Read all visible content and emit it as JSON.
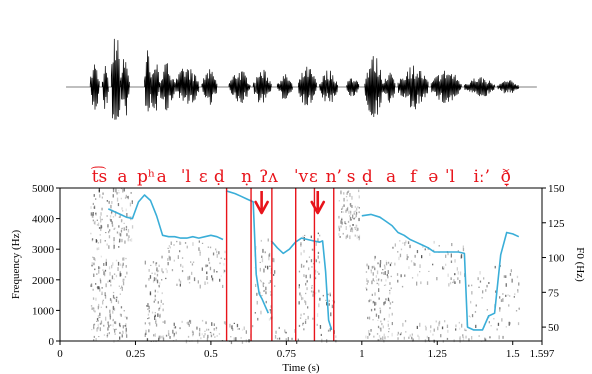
{
  "chart_data": [
    {
      "type": "waveform",
      "title": "",
      "xlim": [
        0,
        1.597
      ],
      "bursts": [
        {
          "t0": 0.1,
          "t1": 0.13,
          "amp": 0.45
        },
        {
          "t0": 0.14,
          "t1": 0.16,
          "amp": 0.4
        },
        {
          "t0": 0.17,
          "t1": 0.2,
          "amp": 1.0
        },
        {
          "t0": 0.2,
          "t1": 0.23,
          "amp": 0.55
        },
        {
          "t0": 0.28,
          "t1": 0.3,
          "amp": 0.65
        },
        {
          "t0": 0.3,
          "t1": 0.33,
          "amp": 0.5
        },
        {
          "t0": 0.33,
          "t1": 0.38,
          "amp": 0.42
        },
        {
          "t0": 0.38,
          "t1": 0.46,
          "amp": 0.35
        },
        {
          "t0": 0.47,
          "t1": 0.52,
          "amp": 0.3
        },
        {
          "t0": 0.56,
          "t1": 0.63,
          "amp": 0.3
        },
        {
          "t0": 0.64,
          "t1": 0.7,
          "amp": 0.3
        },
        {
          "t0": 0.72,
          "t1": 0.77,
          "amp": 0.22
        },
        {
          "t0": 0.79,
          "t1": 0.85,
          "amp": 0.35
        },
        {
          "t0": 0.86,
          "t1": 0.92,
          "amp": 0.3
        },
        {
          "t0": 0.95,
          "t1": 0.99,
          "amp": 0.2
        },
        {
          "t0": 1.01,
          "t1": 1.07,
          "amp": 0.55
        },
        {
          "t0": 1.07,
          "t1": 1.11,
          "amp": 0.3
        },
        {
          "t0": 1.12,
          "t1": 1.22,
          "amp": 0.38
        },
        {
          "t0": 1.23,
          "t1": 1.33,
          "amp": 0.3
        },
        {
          "t0": 1.34,
          "t1": 1.44,
          "amp": 0.18
        },
        {
          "t0": 1.45,
          "t1": 1.52,
          "amp": 0.12
        }
      ]
    },
    {
      "type": "heatmap",
      "title": "",
      "xlabel": "Time (s)",
      "ylabel": "Frequency (Hz)",
      "y2label": "F0 (Hz)",
      "xlim": [
        0,
        1.597
      ],
      "ylim": [
        0,
        5000
      ],
      "y2lim": [
        40,
        150
      ],
      "xticks": [
        0,
        0.25,
        0.5,
        0.75,
        1,
        1.25,
        1.5,
        1.597
      ],
      "xtick_labels": [
        "0",
        "0.25",
        "0.5",
        "0.75",
        "1",
        "1.25",
        "1.5",
        "1.597"
      ],
      "yticks": [
        0,
        1000,
        2000,
        3000,
        4000,
        5000
      ],
      "ytick_labels": [
        "0",
        "1000",
        "2000",
        "3000",
        "4000",
        "5000"
      ],
      "y2ticks": [
        50,
        75,
        100,
        125,
        150
      ],
      "y2tick_labels": [
        "50",
        "75",
        "100",
        "125",
        "150"
      ],
      "colors": {
        "f0": "#3aaed8",
        "annotation": "#e8141b",
        "energy": "#000000"
      },
      "energy_regions": [
        {
          "t0": 0.1,
          "t1": 0.24,
          "f0": 3000,
          "f1": 5000,
          "density": 0.55
        },
        {
          "t0": 0.1,
          "t1": 0.22,
          "f0": 0,
          "f1": 2800,
          "density": 0.6
        },
        {
          "t0": 0.28,
          "t1": 0.34,
          "f0": 0,
          "f1": 2800,
          "density": 0.6
        },
        {
          "t0": 0.34,
          "t1": 0.55,
          "f0": 0,
          "f1": 700,
          "density": 0.5
        },
        {
          "t0": 0.34,
          "t1": 0.55,
          "f0": 1800,
          "f1": 3300,
          "density": 0.3
        },
        {
          "t0": 0.56,
          "t1": 0.64,
          "f0": 0,
          "f1": 600,
          "density": 0.55
        },
        {
          "t0": 0.64,
          "t1": 0.71,
          "f0": 700,
          "f1": 3400,
          "density": 0.35
        },
        {
          "t0": 0.71,
          "t1": 0.79,
          "f0": 0,
          "f1": 500,
          "density": 0.45
        },
        {
          "t0": 0.79,
          "t1": 0.86,
          "f0": 400,
          "f1": 3600,
          "density": 0.45
        },
        {
          "t0": 0.86,
          "t1": 0.92,
          "f0": 0,
          "f1": 1600,
          "density": 0.3
        },
        {
          "t0": 0.92,
          "t1": 0.99,
          "f0": 3400,
          "f1": 5000,
          "density": 0.9
        },
        {
          "t0": 1.01,
          "t1": 1.1,
          "f0": 0,
          "f1": 2800,
          "density": 0.55
        },
        {
          "t0": 1.1,
          "t1": 1.35,
          "f0": 0,
          "f1": 700,
          "density": 0.4
        },
        {
          "t0": 1.1,
          "t1": 1.35,
          "f0": 1800,
          "f1": 3300,
          "density": 0.25
        },
        {
          "t0": 1.35,
          "t1": 1.52,
          "f0": 0,
          "f1": 2500,
          "density": 0.2
        }
      ],
      "f0_contours": [
        {
          "name": "",
          "x": [
            0.16,
            0.18,
            0.2,
            0.22,
            0.24,
            0.26,
            0.28,
            0.3,
            0.32,
            0.34,
            0.36,
            0.38,
            0.4,
            0.42,
            0.44,
            0.46,
            0.48,
            0.5,
            0.52,
            0.54
          ],
          "y": [
            135,
            133,
            131,
            129,
            128,
            140,
            145,
            141,
            130,
            116,
            115,
            115,
            114,
            114,
            115,
            114,
            115,
            116,
            115,
            113
          ]
        },
        {
          "name": "",
          "x": [
            0.55,
            0.58,
            0.6,
            0.62,
            0.64,
            0.65,
            0.66,
            0.67,
            0.68,
            0.69
          ],
          "y": [
            148,
            146,
            144,
            142,
            140,
            88,
            74,
            70,
            65,
            60
          ]
        },
        {
          "name": "",
          "x": [
            0.7,
            0.72,
            0.74,
            0.76,
            0.78,
            0.8,
            0.82,
            0.84,
            0.86,
            0.87,
            0.88,
            0.89,
            0.9
          ],
          "y": [
            112,
            107,
            103,
            106,
            111,
            114,
            113,
            112,
            111,
            112,
            90,
            55,
            48
          ]
        },
        {
          "name": "",
          "x": [
            1.0,
            1.03,
            1.06,
            1.08,
            1.1,
            1.12,
            1.14,
            1.16,
            1.18,
            1.2,
            1.22,
            1.24,
            1.26,
            1.28,
            1.3,
            1.32,
            1.34,
            1.35,
            1.37,
            1.4,
            1.42,
            1.44,
            1.46,
            1.48,
            1.5,
            1.52
          ],
          "y": [
            130,
            131,
            129,
            126,
            123,
            118,
            116,
            113,
            111,
            109,
            107,
            104,
            104,
            104,
            104,
            104,
            103,
            50,
            48,
            48,
            58,
            60,
            102,
            118,
            117,
            115
          ]
        }
      ],
      "boundaries": [
        0.552,
        0.633,
        0.702,
        0.781,
        0.843,
        0.907
      ],
      "arrows": [
        0.668,
        0.854
      ],
      "ipa_labels": [
        {
          "t": 0.105,
          "text": "t͡s"
        },
        {
          "t": 0.19,
          "text": "a"
        },
        {
          "t": 0.255,
          "text": "pʰ"
        },
        {
          "t": 0.32,
          "text": "a"
        },
        {
          "t": 0.4,
          "text": "ˈl"
        },
        {
          "t": 0.46,
          "text": "ɛ"
        },
        {
          "t": 0.51,
          "text": "ḍ"
        },
        {
          "t": 0.6,
          "text": "ṇ"
        },
        {
          "t": 0.66,
          "text": "ʔʌ"
        },
        {
          "t": 0.775,
          "text": "ˈv"
        },
        {
          "t": 0.825,
          "text": "ɛ"
        },
        {
          "t": 0.88,
          "text": "n’"
        },
        {
          "t": 0.95,
          "text": "s"
        },
        {
          "t": 1.0,
          "text": "ḍ"
        },
        {
          "t": 1.08,
          "text": "a"
        },
        {
          "t": 1.16,
          "text": "f"
        },
        {
          "t": 1.22,
          "text": "ə"
        },
        {
          "t": 1.275,
          "text": "ˈl"
        },
        {
          "t": 1.37,
          "text": "iː’"
        },
        {
          "t": 1.46,
          "text": "ð̞"
        }
      ]
    }
  ]
}
